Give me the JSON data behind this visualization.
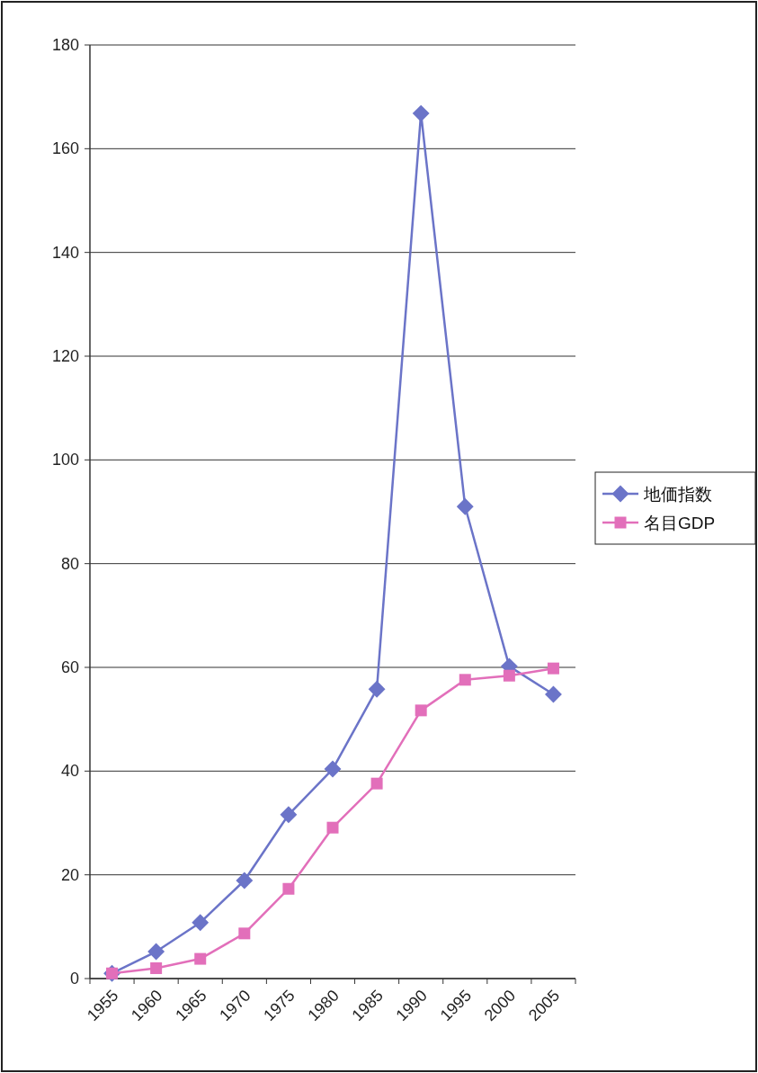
{
  "chart_data": {
    "type": "line",
    "categories": [
      "1955",
      "1960",
      "1965",
      "1970",
      "1975",
      "1980",
      "1985",
      "1990",
      "1995",
      "2000",
      "2005"
    ],
    "series": [
      {
        "name": "地価指数",
        "color": "#6b74c8",
        "marker": "diamond",
        "values": [
          1,
          5.2,
          10.8,
          18.9,
          31.6,
          40.4,
          55.8,
          166.8,
          91,
          60.2,
          54.8
        ]
      },
      {
        "name": "名目GDP",
        "color": "#e26fba",
        "marker": "square",
        "values": [
          1,
          2,
          3.8,
          8.7,
          17.3,
          29.1,
          37.6,
          51.7,
          57.6,
          58.4,
          59.8
        ]
      }
    ],
    "ylim": [
      0,
      180
    ],
    "yticks": [
      0,
      20,
      40,
      60,
      80,
      100,
      120,
      140,
      160,
      180
    ],
    "grid": "y",
    "legend": "right"
  }
}
